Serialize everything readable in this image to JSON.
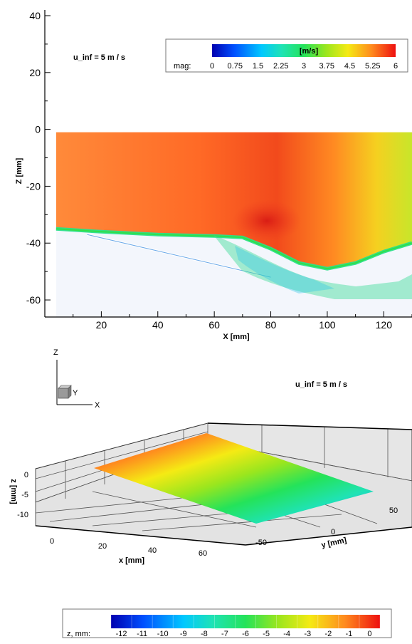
{
  "chart_data": [
    {
      "type": "heatmap",
      "xlabel": "X [mm]",
      "ylabel": "Z [mm]",
      "xlim": [
        0,
        130
      ],
      "ylim": [
        -66,
        42
      ],
      "xticks": [
        "20",
        "40",
        "60",
        "80",
        "100",
        "120"
      ],
      "yticks": [
        "40",
        "20",
        "0",
        "-20",
        "-40",
        "-60"
      ],
      "annotation": "u_inf = 5 m / s",
      "colorbar": {
        "variable": "mag:",
        "unit": "[m/s]",
        "range": [
          0,
          6
        ],
        "ticks": [
          "0",
          "0.75",
          "1.5",
          "2.25",
          "3",
          "3.75",
          "4.5",
          "5.25",
          "6"
        ]
      },
      "interface_profile": {
        "x": [
          4,
          20,
          40,
          60,
          70,
          80,
          90,
          100,
          110,
          120,
          130
        ],
        "z": [
          -35,
          -36,
          -37,
          -37.5,
          -38,
          -42,
          -47,
          -49,
          -47,
          -43,
          -40
        ]
      },
      "plate_line": {
        "x": [
          15,
          80
        ],
        "z": [
          -37,
          -52
        ]
      }
    },
    {
      "type": "surface",
      "xlabel": "x [mm]",
      "ylabel": "y [mm]",
      "zlabel": "z [mm]",
      "xticks": [
        "0",
        "20",
        "40",
        "60"
      ],
      "yticks": [
        "-50",
        "0",
        "50"
      ],
      "zticks": [
        "0",
        "-5",
        "-10"
      ],
      "annotation": "u_inf = 5 m / s",
      "axes_triad": {
        "z": "Z",
        "y": "Y",
        "x": "X"
      },
      "colorbar": {
        "variable": "z, mm:",
        "range": [
          -12.5,
          0.5
        ],
        "ticks": [
          "-12",
          "-11",
          "-10",
          "-9",
          "-8",
          "-7",
          "-6",
          "-5",
          "-4",
          "-3",
          "-2",
          "-1",
          "0"
        ]
      }
    }
  ],
  "colors": {
    "jet": [
      "#0000a8",
      "#0050ff",
      "#00b4ff",
      "#19e8c8",
      "#24e35a",
      "#8fe62a",
      "#f5ea14",
      "#ffa01e",
      "#ff4a14",
      "#f01010"
    ],
    "field_orange": "#ff7e2e",
    "field_red": "#f03018",
    "white_region": "#f4f7fd"
  }
}
